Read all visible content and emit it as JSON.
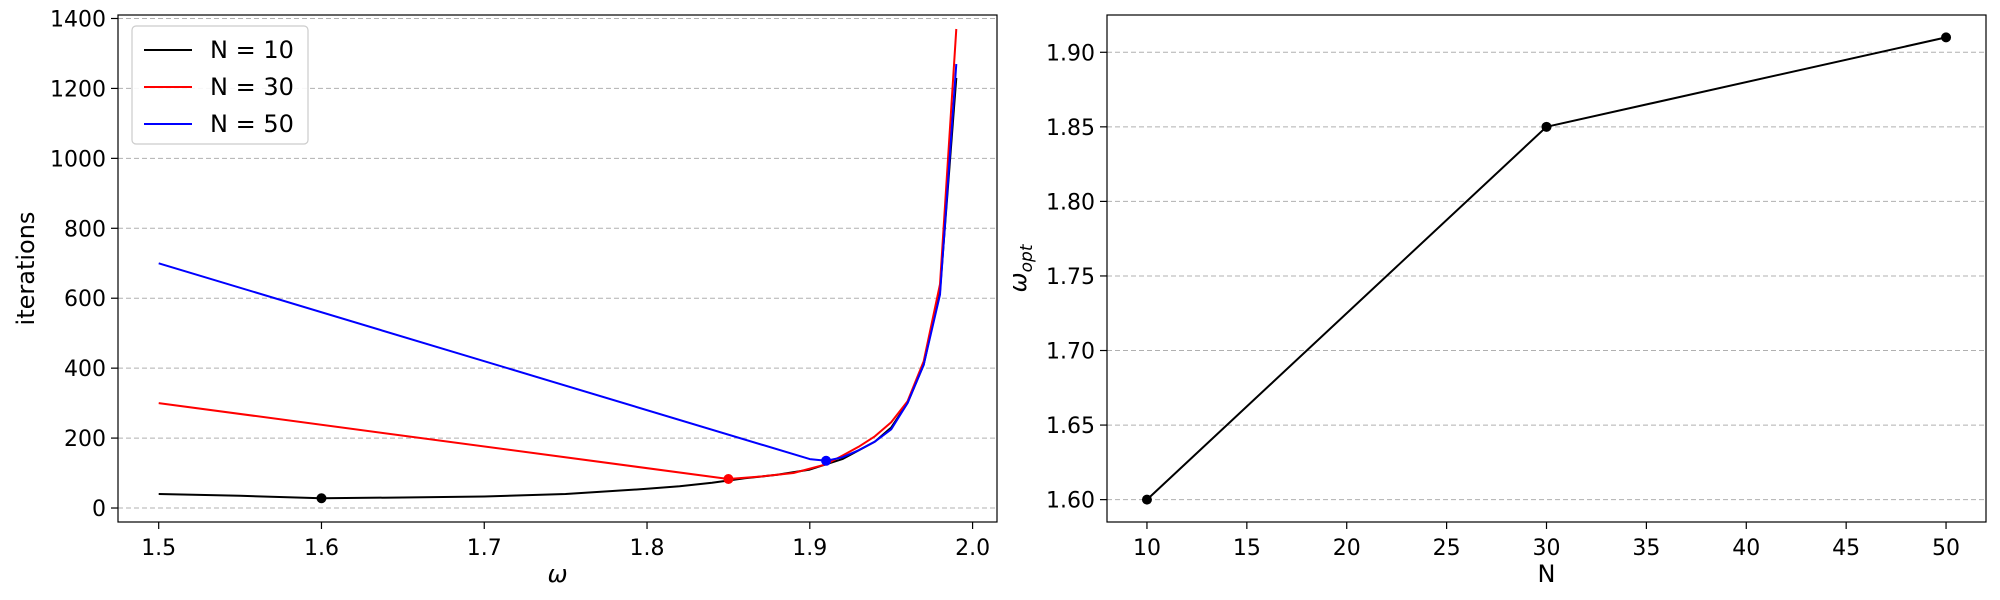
{
  "chart_data": [
    {
      "type": "line",
      "xlabel": "ω",
      "ylabel": "iterations",
      "xlim": [
        1.475,
        2.015
      ],
      "ylim": [
        -40,
        1410
      ],
      "xticks": [
        1.5,
        1.6,
        1.7,
        1.8,
        1.9,
        2.0
      ],
      "xtick_labels": [
        "1.5",
        "1.6",
        "1.7",
        "1.8",
        "1.9",
        "2.0"
      ],
      "yticks": [
        0,
        200,
        400,
        600,
        800,
        1000,
        1200,
        1400
      ],
      "ytick_labels": [
        "0",
        "200",
        "400",
        "600",
        "800",
        "1000",
        "1200",
        "1400"
      ],
      "grid": "y-dashed",
      "legend_position": "top-left",
      "series": [
        {
          "name": "N = 10",
          "color": "#000000",
          "x": [
            1.5,
            1.55,
            1.6,
            1.65,
            1.7,
            1.75,
            1.8,
            1.82,
            1.84,
            1.86,
            1.88,
            1.9,
            1.92,
            1.94,
            1.95,
            1.96,
            1.97,
            1.98,
            1.99
          ],
          "y": [
            40,
            35,
            28,
            30,
            33,
            40,
            55,
            62,
            72,
            85,
            95,
            110,
            140,
            190,
            230,
            300,
            410,
            620,
            1230
          ],
          "optimum": {
            "x": 1.6,
            "y": 28
          }
        },
        {
          "name": "N = 30",
          "color": "#ff0000",
          "x": [
            1.5,
            1.85,
            1.87,
            1.89,
            1.91,
            1.92,
            1.93,
            1.94,
            1.95,
            1.96,
            1.97,
            1.98,
            1.99
          ],
          "y": [
            300,
            83,
            90,
            100,
            125,
            150,
            175,
            205,
            245,
            305,
            420,
            640,
            1370
          ],
          "optimum": {
            "x": 1.85,
            "y": 83
          }
        },
        {
          "name": "N = 50",
          "color": "#0000ff",
          "x": [
            1.5,
            1.9,
            1.91,
            1.92,
            1.93,
            1.94,
            1.95,
            1.96,
            1.97,
            1.98,
            1.99
          ],
          "y": [
            700,
            140,
            135,
            145,
            165,
            190,
            225,
            300,
            410,
            610,
            1270
          ],
          "optimum": {
            "x": 1.91,
            "y": 135
          }
        }
      ]
    },
    {
      "type": "line",
      "xlabel": "N",
      "ylabel": "ω",
      "ylabel_subscript": "opt",
      "xlim": [
        8,
        52
      ],
      "ylim": [
        1.585,
        1.925
      ],
      "xticks": [
        10,
        15,
        20,
        25,
        30,
        35,
        40,
        45,
        50
      ],
      "xtick_labels": [
        "10",
        "15",
        "20",
        "25",
        "30",
        "35",
        "40",
        "45",
        "50"
      ],
      "yticks": [
        1.6,
        1.65,
        1.7,
        1.75,
        1.8,
        1.85,
        1.9
      ],
      "ytick_labels": [
        "1.60",
        "1.65",
        "1.70",
        "1.75",
        "1.80",
        "1.85",
        "1.90"
      ],
      "grid": "y-dashed",
      "series": [
        {
          "color": "#000000",
          "x": [
            10,
            30,
            50
          ],
          "y": [
            1.6,
            1.85,
            1.91
          ],
          "markers": true
        }
      ]
    }
  ]
}
